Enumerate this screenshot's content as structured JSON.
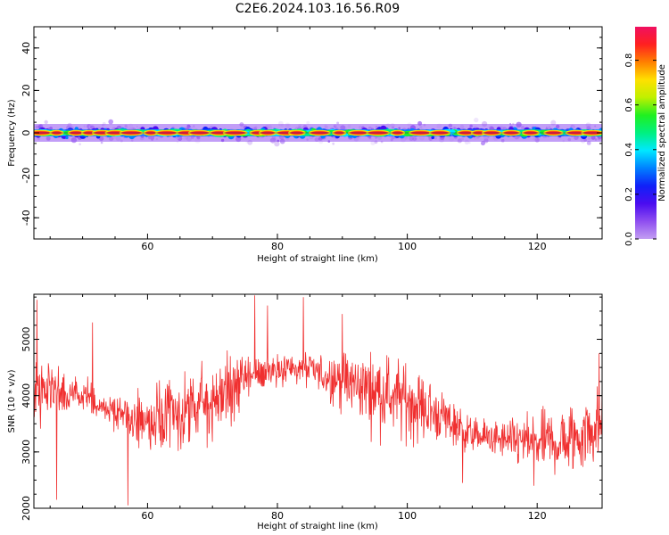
{
  "title": "C2E6.2024.103.16.56.R09",
  "colors": {
    "snr_line": "#f03030",
    "spectrum_low": "#d8c8f8",
    "spectrum_peak": "#f02020",
    "colormap": [
      "#ffffff",
      "#e6d8fa",
      "#c39ef2",
      "#8f4ef0",
      "#4a0cf0",
      "#1020f8",
      "#0080ff",
      "#00e8ff",
      "#00f080",
      "#20f020",
      "#c0f000",
      "#ffe000",
      "#ff8000",
      "#ff2020",
      "#f01060"
    ]
  },
  "chart_data": [
    {
      "type": "heatmap",
      "name": "spectrogram",
      "title": "C2E6.2024.103.16.56.R09",
      "xlabel": "Height of straight line (km)",
      "ylabel": "Frequency (Hz)",
      "xlim": [
        42.5,
        130
      ],
      "ylim": [
        -50,
        50
      ],
      "xticks": [
        60,
        80,
        100,
        120
      ],
      "yticks": [
        -40,
        -20,
        0,
        20,
        40
      ],
      "band_center_hz": 0,
      "band_halfwidth_hz": 3,
      "hot_spots_km": [
        43.5,
        46,
        49,
        51,
        53,
        55,
        57.5,
        60.5,
        63,
        66,
        68,
        71,
        73.5,
        77,
        78.5,
        81.5,
        83,
        86.5,
        89.5,
        92.5,
        95.5,
        98.5,
        102,
        105,
        109,
        111,
        113,
        116,
        119,
        122.5,
        126,
        128.5
      ],
      "colorbar": {
        "label": "Normalized spectral amplitude",
        "range": [
          0,
          0.95
        ],
        "ticks": [
          0.0,
          0.2,
          0.4,
          0.6,
          0.8
        ]
      }
    },
    {
      "type": "line",
      "name": "snr",
      "xlabel": "Height of straight line (km)",
      "ylabel": "SNR (10 * v/v)",
      "xlim": [
        42.5,
        130
      ],
      "ylim": [
        2000,
        5800
      ],
      "xticks": [
        60,
        80,
        100,
        120
      ],
      "yticks": [
        2000,
        3000,
        4000,
        5000
      ],
      "trend": {
        "x": [
          42.5,
          50,
          55,
          60,
          65,
          70,
          75,
          80,
          85,
          90,
          95,
          100,
          105,
          110,
          115,
          120,
          125,
          130
        ],
        "y": [
          4100,
          3950,
          3700,
          3500,
          3650,
          3900,
          4300,
          4500,
          4450,
          4250,
          4100,
          3900,
          3650,
          3300,
          3200,
          3150,
          3200,
          3500
        ]
      },
      "spikes": [
        {
          "x": 43.0,
          "y": 5700
        },
        {
          "x": 46.0,
          "y": 2150
        },
        {
          "x": 51.5,
          "y": 5300
        },
        {
          "x": 57.0,
          "y": 2050
        },
        {
          "x": 76.5,
          "y": 5780
        },
        {
          "x": 78.5,
          "y": 5600
        },
        {
          "x": 84.0,
          "y": 5750
        },
        {
          "x": 90.0,
          "y": 5450
        },
        {
          "x": 108.5,
          "y": 2450
        },
        {
          "x": 119.5,
          "y": 2400
        },
        {
          "x": 129.5,
          "y": 4750
        }
      ]
    }
  ]
}
